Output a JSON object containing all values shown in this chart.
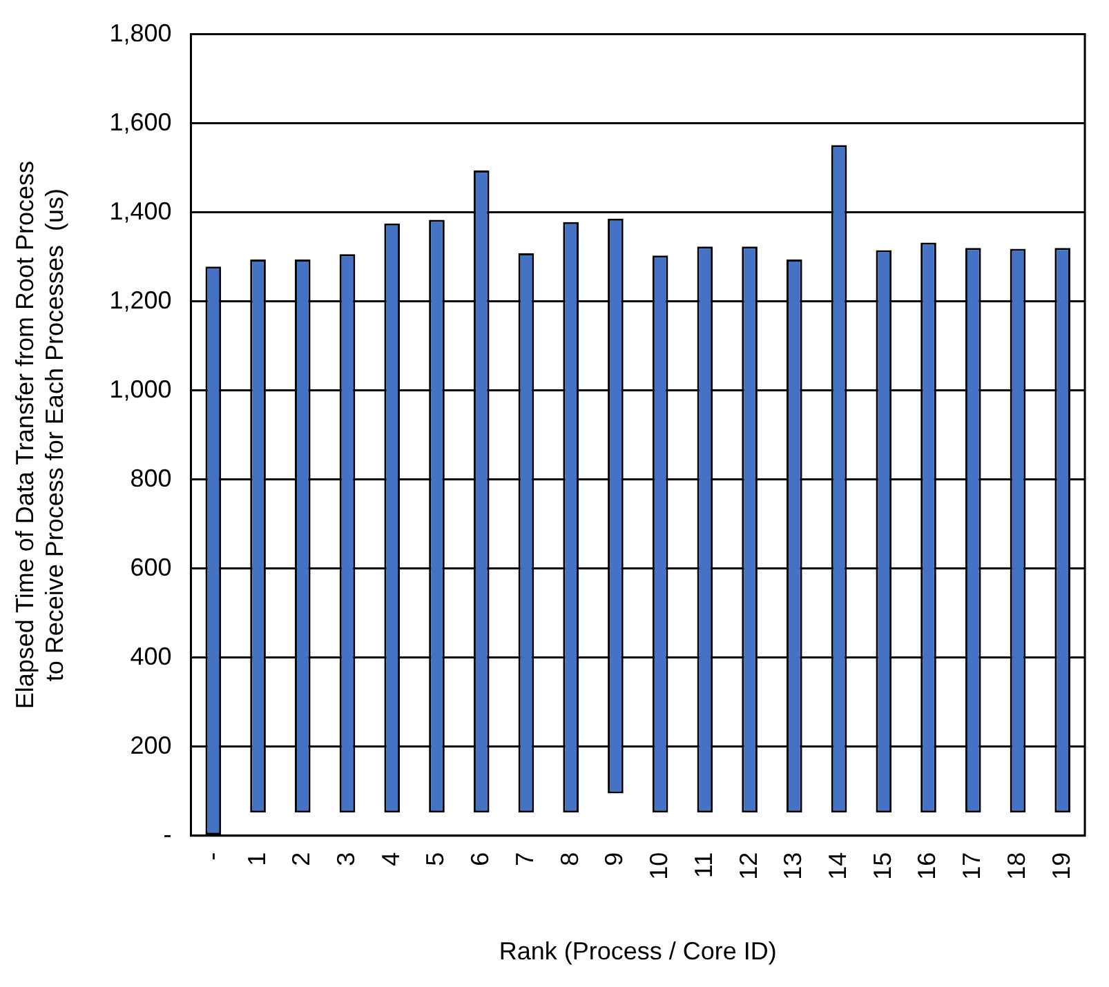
{
  "chart_data": {
    "type": "bar",
    "xlabel": "Rank (Process / Core ID)",
    "ylabel": "Elapsed Time of Data Transfer from Root Process\nto Receive Process for Each Processes  (us)",
    "categories": [
      "-",
      "1",
      "2",
      "3",
      "4",
      "5",
      "6",
      "7",
      "8",
      "9",
      "10",
      "11",
      "12",
      "13",
      "14",
      "15",
      "16",
      "17",
      "18",
      "19"
    ],
    "base": [
      0,
      52,
      52,
      52,
      52,
      52,
      52,
      52,
      52,
      95,
      52,
      52,
      52,
      52,
      52,
      52,
      52,
      52,
      52,
      52
    ],
    "values": [
      1278,
      1242,
      1242,
      1254,
      1323,
      1331,
      1442,
      1256,
      1326,
      1291,
      1251,
      1271,
      1271,
      1242,
      1499,
      1263,
      1280,
      1268,
      1266,
      1268
    ],
    "color": "#4472c4",
    "ylim": [
      0,
      1800
    ],
    "yticks": [
      {
        "value": 0,
        "label": "-"
      },
      {
        "value": 200,
        "label": "200"
      },
      {
        "value": 400,
        "label": "400"
      },
      {
        "value": 600,
        "label": "600"
      },
      {
        "value": 800,
        "label": "800"
      },
      {
        "value": 1000,
        "label": "1,000"
      },
      {
        "value": 1200,
        "label": "1,200"
      },
      {
        "value": 1400,
        "label": "1,400"
      },
      {
        "value": 1600,
        "label": "1,600"
      },
      {
        "value": 1800,
        "label": "1,800"
      }
    ],
    "grid": "y"
  }
}
